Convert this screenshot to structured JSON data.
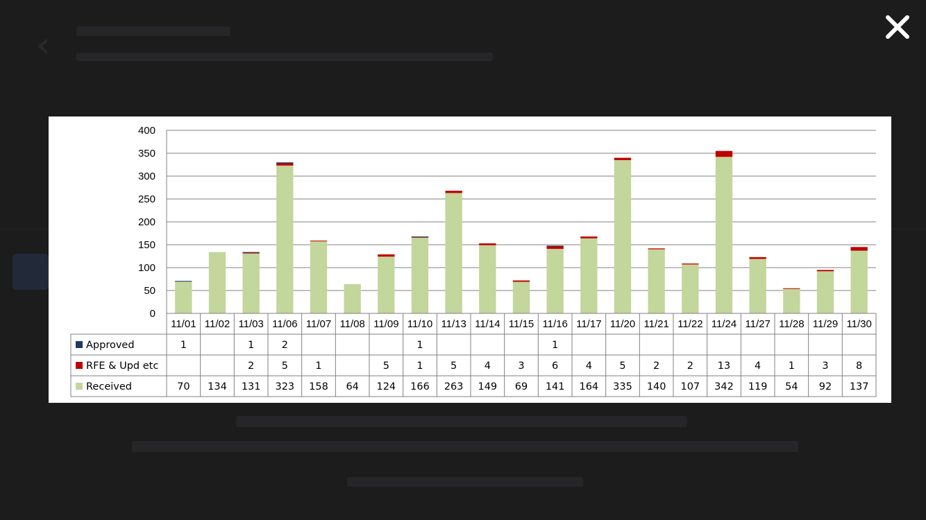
{
  "close_icon": "close-icon",
  "back_icon": "chevron-left-icon",
  "colors": {
    "background": "#1c1c1d",
    "received": "#c3d69b",
    "rfe": "#c00000",
    "approved": "#1f3864",
    "grid": "#808080"
  },
  "chart_data": {
    "type": "bar",
    "stacked": true,
    "categories": [
      "11/01",
      "11/02",
      "11/03",
      "11/06",
      "11/07",
      "11/08",
      "11/09",
      "11/10",
      "11/13",
      "11/14",
      "11/15",
      "11/16",
      "11/17",
      "11/20",
      "11/21",
      "11/22",
      "11/24",
      "11/27",
      "11/28",
      "11/29",
      "11/30"
    ],
    "series": [
      {
        "name": "Received",
        "color": "#c3d69b",
        "values": [
          70,
          134,
          131,
          323,
          158,
          64,
          124,
          166,
          263,
          149,
          69,
          141,
          164,
          335,
          140,
          107,
          342,
          119,
          54,
          92,
          137
        ]
      },
      {
        "name": "RFE & Upd etc",
        "color": "#c00000",
        "values": [
          null,
          null,
          2,
          5,
          1,
          null,
          5,
          1,
          5,
          4,
          3,
          6,
          4,
          5,
          2,
          2,
          13,
          4,
          1,
          3,
          8
        ]
      },
      {
        "name": "Approved",
        "color": "#1f3864",
        "values": [
          1,
          null,
          1,
          2,
          null,
          null,
          null,
          1,
          null,
          null,
          null,
          1,
          null,
          null,
          null,
          null,
          null,
          null,
          null,
          null,
          null
        ]
      }
    ],
    "table_order": [
      "Approved",
      "RFE & Upd etc",
      "Received"
    ],
    "ylim": [
      0,
      400
    ],
    "yticks": [
      0,
      50,
      100,
      150,
      200,
      250,
      300,
      350,
      400
    ],
    "grid": true,
    "data_table": true
  }
}
